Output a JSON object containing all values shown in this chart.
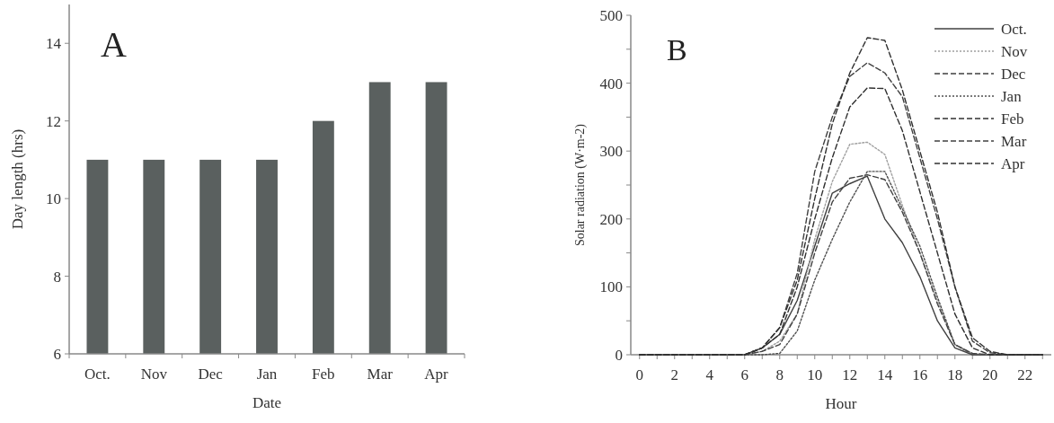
{
  "chart_data": [
    {
      "type": "bar",
      "title": "A",
      "xlabel": "Date",
      "ylabel": "Day length (hrs)",
      "categories": [
        "Oct.",
        "Nov",
        "Dec",
        "Jan",
        "Feb",
        "Mar",
        "Apr"
      ],
      "values": [
        11,
        11,
        11,
        11,
        12,
        13,
        13
      ],
      "color": "#5a605f",
      "ylim": [
        6,
        15
      ],
      "yticks": [
        6,
        8,
        10,
        12,
        14
      ],
      "grid": false
    },
    {
      "type": "line",
      "title": "B",
      "xlabel": "Hour",
      "ylabel": "Solar radiation  (W·m-2)",
      "x": [
        0,
        1,
        2,
        3,
        4,
        5,
        6,
        7,
        8,
        9,
        10,
        11,
        12,
        13,
        14,
        15,
        16,
        17,
        18,
        19,
        20,
        21,
        22,
        23
      ],
      "xlim": [
        -0.5,
        23.5
      ],
      "xticks": [
        0,
        {
          "value": 1,
          "label": null
        },
        2,
        {
          "value": 3,
          "label": null
        },
        4,
        {
          "value": 5,
          "label": null
        },
        6,
        {
          "value": 7,
          "label": null
        },
        8,
        {
          "value": 9,
          "label": null
        },
        10,
        {
          "value": 11,
          "label": null
        },
        12,
        {
          "value": 13,
          "label": null
        },
        14,
        {
          "value": 15,
          "label": null
        },
        16,
        {
          "value": 17,
          "label": null
        },
        18,
        {
          "value": 19,
          "label": null
        },
        20,
        {
          "value": 21,
          "label": null
        },
        22,
        {
          "value": 23,
          "label": null
        }
      ],
      "ylim": [
        0,
        500
      ],
      "yticks": [
        0,
        {
          "value": 50,
          "label": null
        },
        100,
        {
          "value": 150,
          "label": null
        },
        200,
        {
          "value": 250,
          "label": null
        },
        300,
        {
          "value": 350,
          "label": null
        },
        400,
        {
          "value": 450,
          "label": null
        },
        500
      ],
      "grid": false,
      "legend": "top right",
      "marker": "none",
      "series": [
        {
          "name": "Oct.",
          "color": "#404040",
          "line_style": "solid",
          "values": [
            0,
            0,
            0,
            0,
            0,
            0,
            0,
            10,
            30,
            80,
            160,
            238,
            252,
            263,
            200,
            165,
            115,
            50,
            10,
            0,
            0,
            0,
            0,
            0
          ]
        },
        {
          "name": "Nov",
          "color": "#a0a0a0",
          "line_style": "dotted",
          "values": [
            0,
            0,
            0,
            0,
            0,
            0,
            0,
            5,
            20,
            60,
            170,
            255,
            310,
            313,
            295,
            220,
            150,
            80,
            15,
            2,
            0,
            0,
            0,
            0
          ]
        },
        {
          "name": "Dec",
          "color": "#404040",
          "line_style": "dashed",
          "values": [
            0,
            0,
            0,
            0,
            0,
            0,
            0,
            5,
            15,
            60,
            150,
            225,
            260,
            265,
            258,
            210,
            150,
            75,
            15,
            2,
            0,
            0,
            0,
            0
          ]
        },
        {
          "name": "Jan",
          "color": "#505050",
          "line_style": "dotted",
          "values": [
            0,
            0,
            0,
            0,
            0,
            0,
            0,
            0,
            2,
            35,
            110,
            170,
            225,
            270,
            270,
            215,
            160,
            85,
            15,
            0,
            0,
            0,
            0,
            0
          ]
        },
        {
          "name": "Feb",
          "color": "#303030",
          "line_style": "dashed",
          "values": [
            0,
            0,
            0,
            0,
            0,
            0,
            0,
            10,
            30,
            100,
            200,
            290,
            365,
            393,
            392,
            330,
            240,
            150,
            60,
            10,
            0,
            0,
            0,
            0
          ]
        },
        {
          "name": "Mar",
          "color": "#404040",
          "line_style": "dashed",
          "values": [
            0,
            0,
            0,
            0,
            0,
            0,
            0,
            10,
            40,
            120,
            270,
            350,
            410,
            430,
            415,
            380,
            290,
            200,
            100,
            20,
            3,
            0,
            0,
            0
          ]
        },
        {
          "name": "Apr",
          "color": "#303030",
          "line_style": "dashed",
          "values": [
            0,
            0,
            0,
            0,
            0,
            0,
            0,
            10,
            40,
            110,
            230,
            340,
            415,
            467,
            463,
            390,
            300,
            210,
            100,
            25,
            5,
            0,
            0,
            0
          ]
        }
      ]
    }
  ]
}
